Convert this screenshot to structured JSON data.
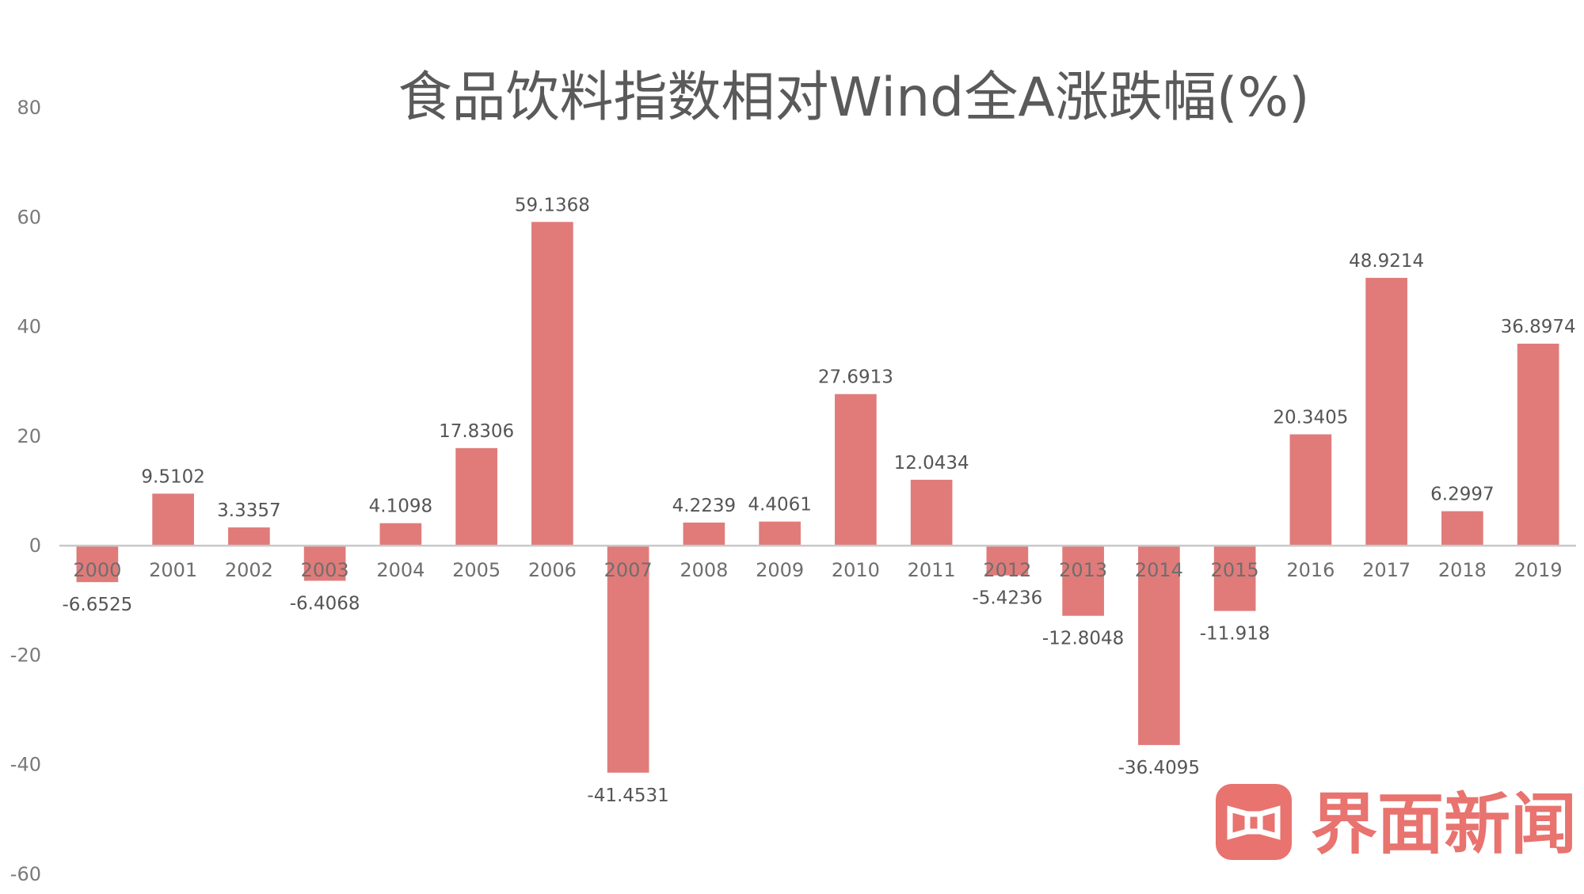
{
  "chart_data": {
    "type": "bar",
    "title": "食品饮料指数相对Wind全A涨跌幅(%)",
    "xlabel": "",
    "ylabel": "",
    "ylim": [
      -60,
      80
    ],
    "yticks": [
      80,
      60,
      40,
      20,
      0,
      -20,
      -40,
      -60
    ],
    "grid": false,
    "categories": [
      "2000",
      "2001",
      "2002",
      "2003",
      "2004",
      "2005",
      "2006",
      "2007",
      "2008",
      "2009",
      "2010",
      "2011",
      "2012",
      "2013",
      "2014",
      "2015",
      "2016",
      "2017",
      "2018",
      "2019"
    ],
    "values": [
      -6.6525,
      9.5102,
      3.3357,
      -6.4068,
      4.1098,
      17.8306,
      59.1368,
      -41.4531,
      4.2239,
      4.4061,
      27.6913,
      12.0434,
      -5.4236,
      -12.8048,
      -36.4095,
      -11.918,
      20.3405,
      48.9214,
      6.2997,
      36.8974
    ],
    "data_labels": [
      "-6.6525",
      "9.5102",
      "3.3357",
      "-6.4068",
      "4.1098",
      "17.8306",
      "59.1368",
      "-41.4531",
      "4.2239",
      "4.4061",
      "27.6913",
      "12.0434",
      "-5.4236",
      "-12.8048",
      "-36.4095",
      "-11.918",
      "20.3405",
      "48.9214",
      "6.2997",
      "36.8974"
    ],
    "bar_color": "#e07b7a"
  },
  "watermark": {
    "text": "界面新闻",
    "color": "#e8736f"
  }
}
